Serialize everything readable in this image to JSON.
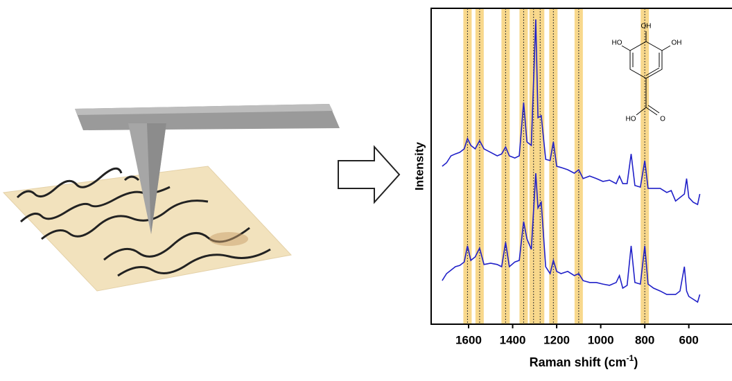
{
  "chart_data": {
    "type": "line",
    "y_label": "Intensity",
    "x_label": {
      "text": "Raman shift (cm",
      "sup": "-1",
      "end": ")"
    },
    "xlim": [
      1770,
      385
    ],
    "ylim": [
      0,
      100
    ],
    "xticks": [
      1600,
      1400,
      1200,
      1000,
      800,
      600
    ],
    "bands": [
      1605,
      1550,
      1432,
      1350,
      1305,
      1275,
      1215,
      1100,
      800
    ],
    "band_color": "#f8d88c",
    "molecule_labels": [
      "OH",
      "HO",
      "OH",
      "HO",
      "O"
    ],
    "x": [
      1720,
      1700,
      1680,
      1660,
      1640,
      1620,
      1605,
      1590,
      1570,
      1550,
      1530,
      1500,
      1470,
      1450,
      1432,
      1415,
      1390,
      1370,
      1350,
      1335,
      1315,
      1295,
      1285,
      1270,
      1250,
      1230,
      1215,
      1200,
      1180,
      1150,
      1120,
      1100,
      1080,
      1050,
      1020,
      990,
      960,
      930,
      915,
      900,
      880,
      862,
      845,
      820,
      800,
      785,
      760,
      730,
      700,
      680,
      660,
      640,
      620,
      610,
      600,
      580,
      560,
      550
    ],
    "series": [
      {
        "color": "#1f1fc8",
        "values": [
          50,
          51.1,
          53.3,
          53.9,
          54.4,
          55.5,
          58.8,
          56.6,
          55.5,
          58.1,
          55.5,
          54.4,
          53.3,
          53.9,
          56.1,
          53.3,
          52.6,
          53.3,
          70.2,
          57.7,
          56.6,
          96.5,
          65.4,
          66,
          52.2,
          51.8,
          57.7,
          50,
          49.6,
          48.9,
          47.8,
          48.9,
          46.1,
          46.9,
          46.1,
          45.2,
          45.6,
          44.5,
          46.9,
          44.5,
          44.5,
          53.9,
          43.9,
          43.4,
          51.8,
          43,
          43,
          43,
          41.7,
          42.3,
          39,
          40.1,
          41.2,
          46.1,
          40.1,
          38.6,
          37.9,
          41.2
        ]
      },
      {
        "color": "#1f1fc8",
        "values": [
          13.8,
          16,
          17.1,
          18.2,
          18.6,
          19.7,
          24.8,
          20.2,
          21.3,
          24.1,
          18.9,
          19.3,
          18.9,
          18.2,
          25.9,
          18.2,
          19.7,
          20.2,
          32.5,
          27,
          23.7,
          47.8,
          36.8,
          38.6,
          18.2,
          16,
          20.2,
          16.7,
          16,
          16.7,
          15.4,
          16,
          13.8,
          13.2,
          13.2,
          12.7,
          12.3,
          13.2,
          15.4,
          11.4,
          12.3,
          24.8,
          13.2,
          12.7,
          24.8,
          12.7,
          11.4,
          10.5,
          9.4,
          9.4,
          9.4,
          10.5,
          18.2,
          10.5,
          8.8,
          7.9,
          7,
          9.4
        ]
      }
    ]
  }
}
